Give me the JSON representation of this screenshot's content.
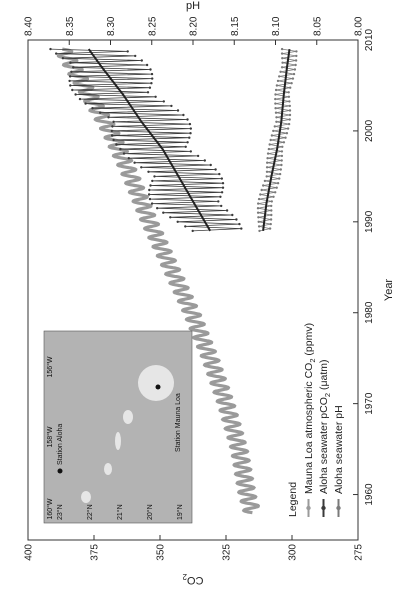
{
  "chart_data": {
    "type": "line",
    "xlabel": "Year",
    "ylabel_left": "CO",
    "ylabel_left_sub": "2",
    "ylabel_right": "pH",
    "xlim": [
      1955,
      2010
    ],
    "ylim_left": [
      275,
      400
    ],
    "ylim_right": [
      8.0,
      8.4
    ],
    "x_ticks": [
      "1960",
      "1970",
      "1980",
      "1990",
      "2000",
      "2010"
    ],
    "y_left_ticks": [
      "275",
      "300",
      "325",
      "350",
      "375",
      "400"
    ],
    "y_right_ticks": [
      "8.00",
      "8.05",
      "8.10",
      "8.15",
      "8.20",
      "8.25",
      "8.30",
      "8.35",
      "8.40"
    ],
    "legend": {
      "title": "Legend",
      "placement": "bottom-left",
      "items": [
        {
          "label": "Mauna Loa atmospheric CO",
          "sub": "2",
          "tail": " (ppmv)",
          "color": "#9a9a9a"
        },
        {
          "label": "Aloha seawater pCO",
          "sub": "2",
          "tail": " (μatm)",
          "color": "#3a3a3a"
        },
        {
          "label": "Aloha seawater pH",
          "sub": "",
          "tail": "",
          "color": "#7a7a7a"
        }
      ]
    },
    "series": [
      {
        "name": "Mauna Loa atmospheric CO2 (ppmv)",
        "axis": "left",
        "seasonal_amplitude": 3,
        "x": [
          1958,
          1960,
          1965,
          1970,
          1975,
          1980,
          1985,
          1990,
          1995,
          2000,
          2005,
          2009
        ],
        "values": [
          315,
          317,
          320,
          325,
          331,
          338,
          346,
          354,
          361,
          369,
          379,
          387
        ]
      },
      {
        "name": "Aloha seawater pCO2 (μatm)",
        "axis": "left",
        "x": [
          1989,
          1992,
          1995,
          1998,
          2001,
          2004,
          2007,
          2009
        ],
        "values": [
          331,
          337,
          343,
          349,
          357,
          364,
          372,
          377
        ],
        "spread": [
          12,
          16,
          16,
          16,
          18,
          18,
          18,
          16
        ]
      },
      {
        "name": "Aloha seawater pH",
        "axis": "right",
        "x": [
          1989,
          1992,
          1995,
          1998,
          2001,
          2004,
          2007,
          2009
        ],
        "values": [
          8.115,
          8.111,
          8.105,
          8.098,
          8.093,
          8.09,
          8.086,
          8.083
        ],
        "spread": [
          0.008,
          0.01,
          0.01,
          0.01,
          0.01,
          0.01,
          0.01,
          0.01
        ]
      }
    ],
    "annotations": [
      {
        "text": "Station Mauna Loa"
      },
      {
        "text": "Station Aloha"
      }
    ],
    "inset_map": {
      "lon_ticks": [
        "160°W",
        "158°W",
        "156°W"
      ],
      "lat_ticks": [
        "23°N",
        "22°N",
        "21°N",
        "20°N",
        "19°N"
      ],
      "label_mauna_loa": "Station Mauna Loa",
      "label_aloha": "Station Aloha"
    },
    "grid": false
  }
}
